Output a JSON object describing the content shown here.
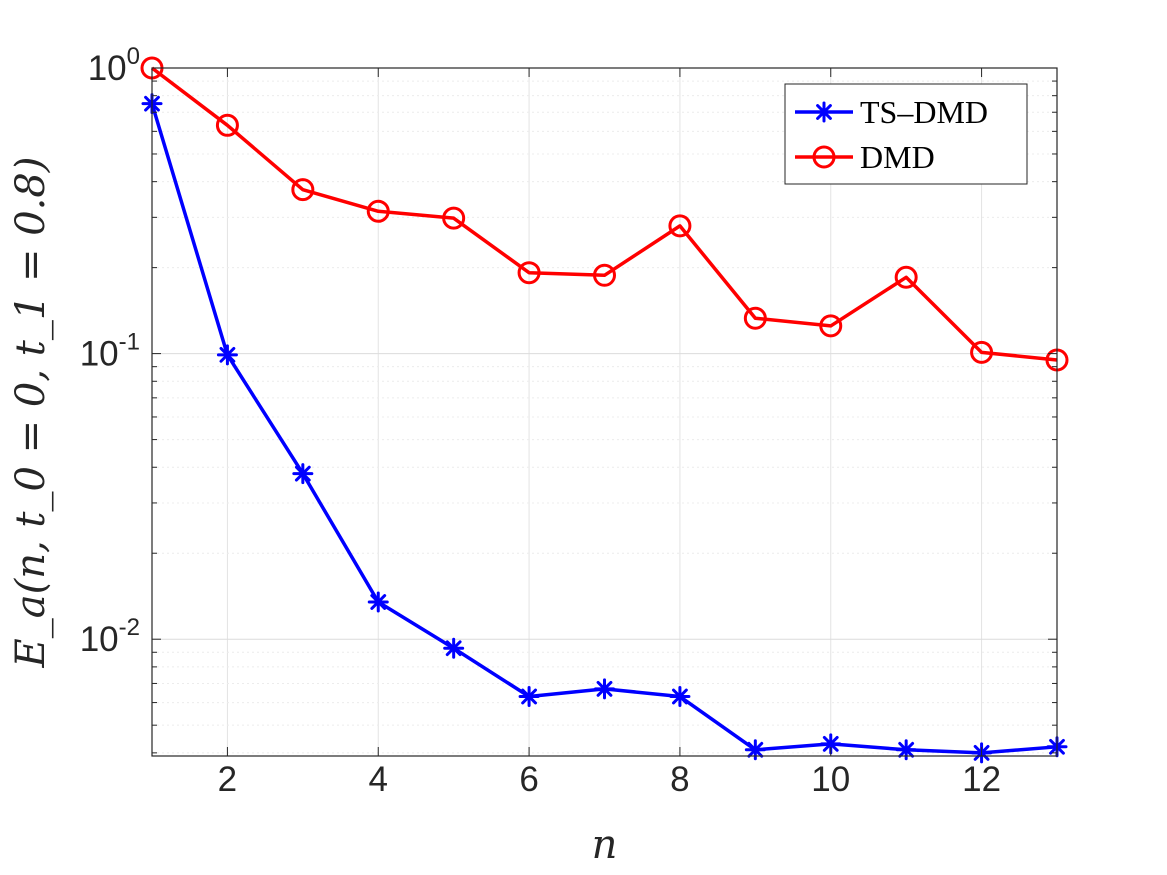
{
  "chart_data": {
    "type": "line",
    "title": "",
    "xlabel": "n",
    "ylabel": "E_a(n, t_0 = 0, t_1 = 0.8)",
    "y_scale": "log",
    "xlim": [
      1,
      13
    ],
    "ylim": [
      0.0039,
      1.0
    ],
    "grid": true,
    "minor_grid": true,
    "box": true,
    "legend_position": "top-right",
    "x_ticks": [
      2,
      4,
      6,
      8,
      10,
      12
    ],
    "y_ticks": [
      {
        "value": 1,
        "base": "10",
        "exponent": "0"
      },
      {
        "value": 0.1,
        "base": "10",
        "exponent": "-1"
      },
      {
        "value": 0.01,
        "base": "10",
        "exponent": "-2"
      }
    ],
    "x": [
      1,
      2,
      3,
      4,
      5,
      6,
      7,
      8,
      9,
      10,
      11,
      12,
      13
    ],
    "series": [
      {
        "name": "TS–DMD",
        "color": "#0000ff",
        "marker": "asterisk",
        "values": [
          0.75,
          0.099,
          0.038,
          0.0135,
          0.0093,
          0.0063,
          0.0067,
          0.0063,
          0.0041,
          0.0043,
          0.0041,
          0.004,
          0.0042
        ]
      },
      {
        "name": "DMD",
        "color": "#ff0000",
        "marker": "circle",
        "values": [
          1.0,
          0.63,
          0.375,
          0.315,
          0.298,
          0.192,
          0.188,
          0.28,
          0.133,
          0.125,
          0.185,
          0.101,
          0.095
        ]
      }
    ]
  }
}
